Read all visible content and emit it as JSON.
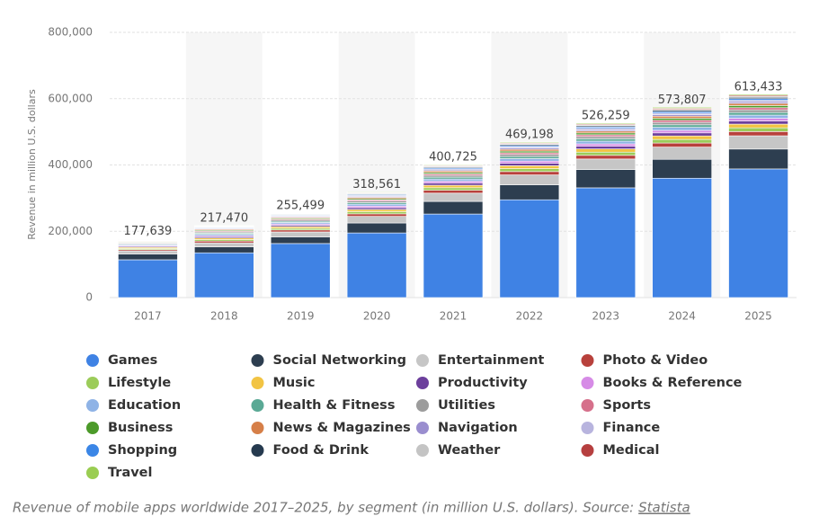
{
  "chart_data": {
    "type": "stacked_bar",
    "y_label": "Revenue in million U.S. dollars",
    "caption": "Revenue of mobile apps worldwide 2017–2025, by segment (in million U.S. dollars). Source:",
    "source": "Statista",
    "categories": [
      "2017",
      "2018",
      "2019",
      "2020",
      "2021",
      "2022",
      "2023",
      "2024",
      "2025"
    ],
    "totals": [
      177639,
      217470,
      255499,
      318561,
      400725,
      469198,
      526259,
      573807,
      613433
    ],
    "total_labels": [
      "177,639",
      "217,470",
      "255,499",
      "318,561",
      "400,725",
      "469,198",
      "526,259",
      "573,807",
      "613,433"
    ],
    "ylim": [
      0,
      800000
    ],
    "yticks": [
      0,
      {
        "value": 200000,
        "label": "200,000"
      },
      {
        "value": 400000,
        "label": "400,000"
      },
      {
        "value": 600000,
        "label": "600,000"
      },
      {
        "value": 800000,
        "label": "800,000"
      }
    ],
    "grid": true,
    "series": [
      {
        "name": "Games",
        "color": "#3f82e4",
        "values": [
          114000,
          135000,
          163000,
          195000,
          252000,
          295000,
          331000,
          360000,
          388000
        ]
      },
      {
        "name": "Social Networking",
        "color": "#2d3e50",
        "values": [
          17000,
          18000,
          20000,
          30000,
          38000,
          45000,
          55000,
          57000,
          60000
        ]
      },
      {
        "name": "Entertainment",
        "color": "#c6c6c6",
        "values": [
          10000,
          12000,
          15000,
          20000,
          25000,
          30000,
          32000,
          37000,
          40000
        ]
      },
      {
        "name": "Photo & Video",
        "color": "#b8413c",
        "values": [
          3700,
          5300,
          5900,
          7500,
          8700,
          10100,
          11000,
          12200,
          12800
        ]
      },
      {
        "name": "Lifestyle",
        "color": "#9ccc5a",
        "values": [
          3300,
          4700,
          5100,
          6600,
          7600,
          8800,
          9700,
          10700,
          11200
        ]
      },
      {
        "name": "Music",
        "color": "#f2c443",
        "values": [
          3300,
          4700,
          5100,
          6600,
          7600,
          8800,
          9700,
          10700,
          11200
        ]
      },
      {
        "name": "Productivity",
        "color": "#6c3f9c",
        "values": [
          2800,
          4000,
          4400,
          5600,
          6600,
          7600,
          8300,
          9200,
          9600
        ]
      },
      {
        "name": "Books & Reference",
        "color": "#d68be6",
        "values": [
          2300,
          3300,
          3700,
          4700,
          5500,
          6300,
          6900,
          7600,
          8000
        ]
      },
      {
        "name": "Education",
        "color": "#8fb3e6",
        "values": [
          2800,
          4000,
          4400,
          5600,
          6600,
          7600,
          8300,
          9200,
          9600
        ]
      },
      {
        "name": "Health & Fitness",
        "color": "#5aa995",
        "values": [
          2300,
          3300,
          3700,
          4700,
          5500,
          6300,
          6900,
          7600,
          8000
        ]
      },
      {
        "name": "Utilities",
        "color": "#9c9c9c",
        "values": [
          2300,
          3300,
          3700,
          4700,
          5500,
          6300,
          6900,
          7600,
          8000
        ]
      },
      {
        "name": "Sports",
        "color": "#d6708b",
        "values": [
          1900,
          2700,
          2900,
          3800,
          4400,
          5100,
          5500,
          6100,
          6400
        ]
      },
      {
        "name": "Business",
        "color": "#4c9a2a",
        "values": [
          1900,
          2700,
          2900,
          3800,
          4400,
          5100,
          5500,
          6100,
          6400
        ]
      },
      {
        "name": "News & Magazines",
        "color": "#d67f48",
        "values": [
          1900,
          2700,
          2900,
          3800,
          4400,
          5100,
          5500,
          6100,
          6400
        ]
      },
      {
        "name": "Navigation",
        "color": "#9a8ecf",
        "values": [
          1400,
          2000,
          2200,
          2800,
          3300,
          3800,
          4100,
          4600,
          4800
        ]
      },
      {
        "name": "Finance",
        "color": "#b8b4de",
        "values": [
          1400,
          2000,
          2200,
          2800,
          3300,
          3800,
          4100,
          4600,
          4800
        ]
      },
      {
        "name": "Shopping",
        "color": "#3b86e6",
        "values": [
          1400,
          2000,
          2200,
          2800,
          3300,
          3800,
          4100,
          4600,
          4800
        ]
      },
      {
        "name": "Food & Drink",
        "color": "#263a4f",
        "values": [
          1200,
          1700,
          1800,
          2300,
          2700,
          3200,
          3500,
          3800,
          4000
        ]
      },
      {
        "name": "Weather",
        "color": "#c4c4c4",
        "values": [
          900,
          1300,
          1500,
          1900,
          2200,
          2500,
          2800,
          3100,
          3200
        ]
      },
      {
        "name": "Medical",
        "color": "#b63f3f",
        "values": [
          900,
          1300,
          1500,
          1900,
          2200,
          2500,
          2800,
          3100,
          3200
        ]
      },
      {
        "name": "Travel",
        "color": "#9acd52",
        "values": [
          900,
          1300,
          1500,
          1900,
          2200,
          2500,
          2800,
          3100,
          3200
        ]
      }
    ]
  }
}
